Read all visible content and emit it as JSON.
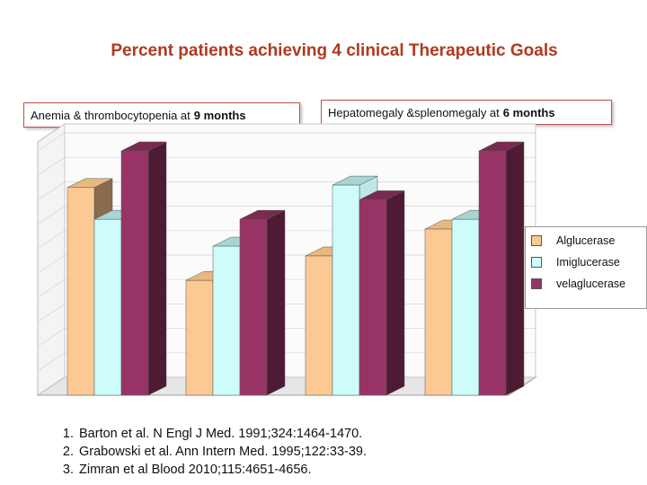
{
  "title": "Percent patients achieving 4 clinical Therapeutic Goals",
  "panels": [
    {
      "label_text": "Anemia & thrombocytopenia at ",
      "label_bold": "9 months"
    },
    {
      "label_text": "Hepatomegaly &splenomegaly at ",
      "label_bold": "6 months"
    }
  ],
  "colors": {
    "alglucerase": "#fcc994",
    "imiglucerase": "#cdfcfb",
    "velaglucerase": "#983465"
  },
  "chart_data": {
    "type": "bar",
    "categories": [
      "",
      "",
      "",
      ""
    ],
    "series": [
      {
        "name": "Alglucerase",
        "values": [
          85,
          47,
          57,
          68
        ]
      },
      {
        "name": "Imiglucerase",
        "values": [
          72,
          61,
          86,
          72
        ]
      },
      {
        "name": "velaglucerase",
        "values": [
          100,
          72,
          80,
          100
        ]
      }
    ],
    "ylim": [
      0,
      100
    ],
    "legend": "right"
  },
  "references": [
    "Barton et al. N Engl J Med. 1991;324:1464-1470.",
    "Grabowski et al.  Ann Intern Med. 1995;122:33-39.",
    "Zimran et al Blood 2010;115:4651-4656."
  ]
}
